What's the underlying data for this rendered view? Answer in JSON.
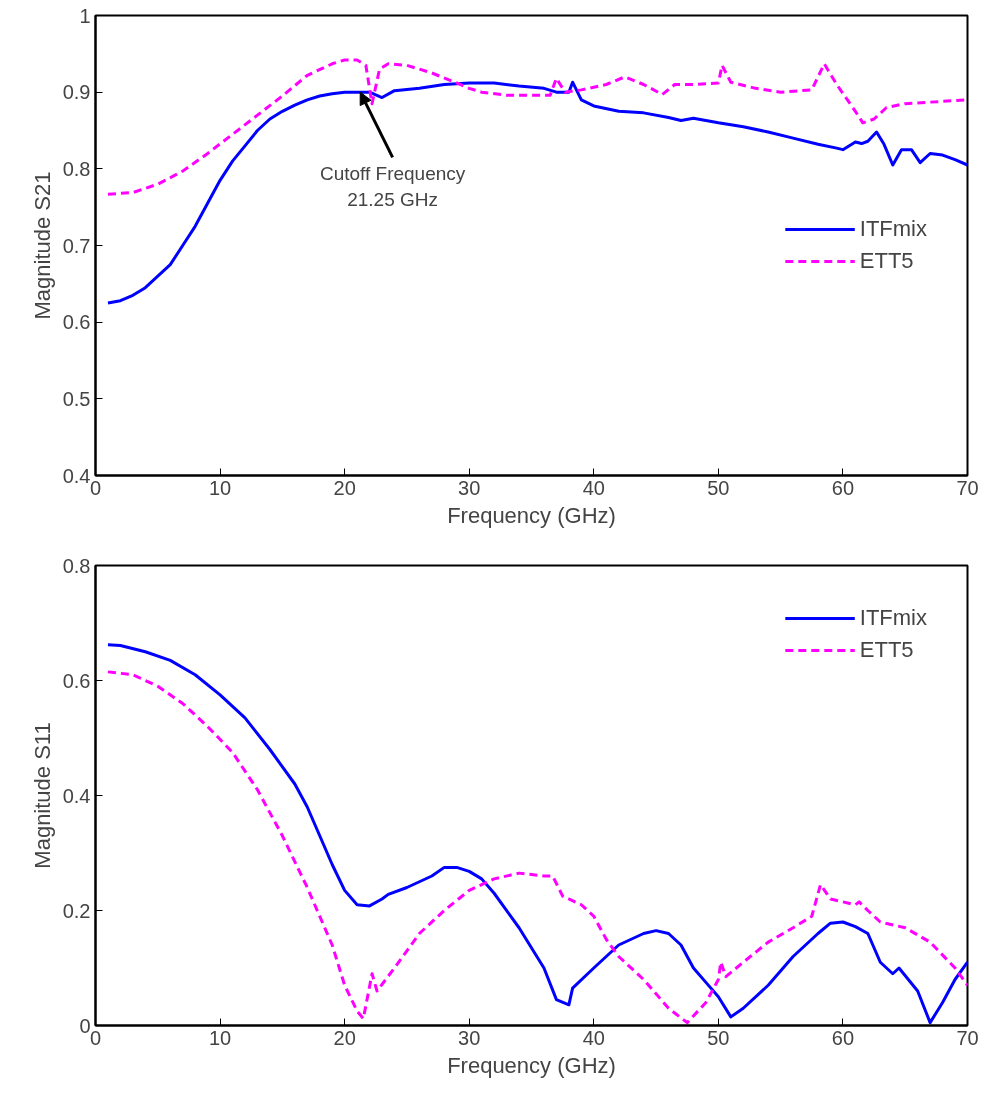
{
  "chart_data": [
    {
      "type": "line",
      "xlabel": "Frequency (GHz)",
      "ylabel": "Magnitude S21",
      "xlim": [
        0,
        70
      ],
      "xticks": [
        0,
        10,
        20,
        30,
        40,
        50,
        60,
        70
      ],
      "ylim": [
        0.4,
        1
      ],
      "yticks": [
        0.4,
        0.5,
        0.6,
        0.7,
        0.8,
        0.9,
        1
      ],
      "grid": false,
      "legend": "right",
      "annotations": [
        {
          "text": "Cutoff Frequency\n21.25 GHz",
          "x": 21.25,
          "y": 0.9
        }
      ],
      "series": [
        {
          "name": "ITFmix",
          "color": "#0000ff",
          "line_style": "solid",
          "x": [
            1,
            2,
            3,
            4,
            5,
            6,
            7,
            8,
            9,
            10,
            11,
            12,
            13,
            14,
            15,
            16,
            17,
            18,
            19,
            20,
            22,
            23,
            24,
            26,
            28,
            30,
            32,
            34,
            36,
            37,
            38,
            38.3,
            39,
            40,
            42,
            44,
            46,
            47,
            48,
            50,
            52,
            54,
            56,
            58,
            59.5,
            60,
            61,
            61.5,
            62,
            62.7,
            63.3,
            64,
            64.7,
            65.5,
            66.2,
            67,
            68,
            69,
            70
          ],
          "values": [
            0.625,
            0.628,
            0.635,
            0.645,
            0.66,
            0.675,
            0.7,
            0.725,
            0.755,
            0.785,
            0.81,
            0.83,
            0.85,
            0.865,
            0.875,
            0.883,
            0.89,
            0.895,
            0.898,
            0.9,
            0.9,
            0.893,
            0.902,
            0.905,
            0.91,
            0.912,
            0.912,
            0.908,
            0.905,
            0.9,
            0.9,
            0.913,
            0.89,
            0.882,
            0.875,
            0.873,
            0.867,
            0.863,
            0.866,
            0.86,
            0.855,
            0.848,
            0.84,
            0.832,
            0.827,
            0.825,
            0.835,
            0.833,
            0.836,
            0.848,
            0.832,
            0.805,
            0.825,
            0.825,
            0.808,
            0.82,
            0.818,
            0.812,
            0.805
          ]
        },
        {
          "name": "ETT5",
          "color": "#ff00ff",
          "line_style": "dashed",
          "x": [
            1,
            3,
            5,
            7,
            9,
            11,
            13,
            15,
            17,
            19,
            20,
            21,
            21.7,
            22.2,
            22.8,
            23.5,
            25,
            27,
            29,
            30,
            31,
            33,
            35,
            36.5,
            37,
            37.7,
            39,
            41,
            42.5,
            44,
            45.5,
            46.5,
            48,
            50,
            50.3,
            51,
            53,
            55,
            57.5,
            58.5,
            59.5,
            61,
            61.6,
            62.5,
            63.5,
            65,
            70
          ],
          "values": [
            0.767,
            0.769,
            0.78,
            0.797,
            0.82,
            0.845,
            0.87,
            0.895,
            0.922,
            0.937,
            0.942,
            0.942,
            0.935,
            0.885,
            0.93,
            0.937,
            0.935,
            0.925,
            0.912,
            0.905,
            0.9,
            0.896,
            0.896,
            0.896,
            0.918,
            0.9,
            0.903,
            0.91,
            0.92,
            0.91,
            0.897,
            0.91,
            0.91,
            0.912,
            0.935,
            0.913,
            0.905,
            0.9,
            0.903,
            0.937,
            0.91,
            0.875,
            0.86,
            0.865,
            0.88,
            0.885,
            0.89
          ]
        }
      ]
    },
    {
      "type": "line",
      "xlabel": "Frequency (GHz)",
      "ylabel": "Magnitude S11",
      "xlim": [
        0,
        70
      ],
      "xticks": [
        0,
        10,
        20,
        30,
        40,
        50,
        60,
        70
      ],
      "ylim": [
        0,
        0.8
      ],
      "yticks": [
        0,
        0.2,
        0.4,
        0.6,
        0.8
      ],
      "grid": false,
      "legend": "top right",
      "series": [
        {
          "name": "ITFmix",
          "color": "#0000ff",
          "line_style": "solid",
          "x": [
            1,
            2,
            4,
            6,
            8,
            10,
            12,
            14,
            16,
            17,
            18,
            19,
            20,
            21,
            22,
            23,
            23.5,
            25,
            27,
            28,
            29,
            30,
            31,
            32,
            34,
            36,
            37,
            38,
            38.3,
            40,
            42,
            44,
            45,
            46,
            47,
            48,
            49,
            50,
            51,
            52,
            54,
            56,
            58,
            59,
            60,
            61,
            62,
            63,
            64,
            64.5,
            66,
            67,
            68,
            69,
            70
          ],
          "values": [
            0.662,
            0.661,
            0.65,
            0.635,
            0.61,
            0.575,
            0.535,
            0.48,
            0.42,
            0.38,
            0.33,
            0.28,
            0.235,
            0.21,
            0.208,
            0.22,
            0.228,
            0.24,
            0.26,
            0.275,
            0.275,
            0.268,
            0.255,
            0.23,
            0.17,
            0.1,
            0.045,
            0.036,
            0.065,
            0.1,
            0.14,
            0.16,
            0.165,
            0.16,
            0.14,
            0.1,
            0.075,
            0.05,
            0.015,
            0.03,
            0.07,
            0.12,
            0.16,
            0.178,
            0.18,
            0.172,
            0.16,
            0.11,
            0.09,
            0.1,
            0.06,
            0.005,
            0.04,
            0.08,
            0.11
          ]
        },
        {
          "name": "ETT5",
          "color": "#ff00ff",
          "line_style": "dashed",
          "x": [
            1,
            3,
            5,
            7,
            9,
            11,
            13,
            15,
            17,
            19,
            20,
            21,
            21.5,
            22.2,
            22.6,
            24,
            26,
            28,
            30,
            32,
            34,
            36,
            36.7,
            37.5,
            39,
            40,
            41,
            42,
            44,
            46,
            47.5,
            49,
            50,
            50.2,
            50.6,
            52,
            54,
            56,
            57.5,
            58.2,
            59,
            60,
            61,
            61.3,
            62,
            63,
            65,
            67,
            69,
            70
          ],
          "values": [
            0.615,
            0.61,
            0.59,
            0.56,
            0.52,
            0.475,
            0.41,
            0.33,
            0.24,
            0.14,
            0.07,
            0.025,
            0.012,
            0.09,
            0.06,
            0.1,
            0.16,
            0.2,
            0.235,
            0.255,
            0.265,
            0.26,
            0.26,
            0.225,
            0.21,
            0.19,
            0.15,
            0.12,
            0.08,
            0.03,
            0.005,
            0.04,
            0.08,
            0.11,
            0.085,
            0.11,
            0.145,
            0.17,
            0.19,
            0.245,
            0.22,
            0.215,
            0.21,
            0.215,
            0.2,
            0.18,
            0.17,
            0.145,
            0.1,
            0.07
          ]
        }
      ]
    }
  ]
}
